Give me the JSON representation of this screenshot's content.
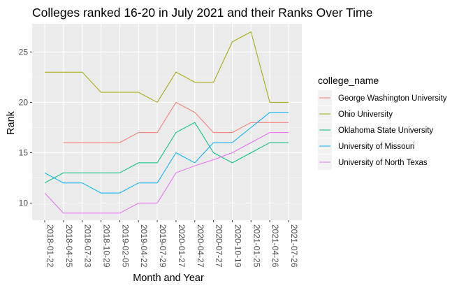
{
  "chart_data": {
    "type": "line",
    "title": "Colleges ranked 16-20 in July 2021 and their Ranks Over Time",
    "xlabel": "Month and Year",
    "ylabel": "Rank",
    "ylim": [
      8.3,
      27.8
    ],
    "yticks": [
      10,
      15,
      20,
      25
    ],
    "grid": true,
    "legend_position": "right",
    "legend_title": "college_name",
    "categories": [
      "2018-01-22",
      "2018-04-25",
      "2018-07-23",
      "2018-10-29",
      "2019-02-05",
      "2019-04-22",
      "2019-07-29",
      "2020-01-27",
      "2020-04-27",
      "2020-07-27",
      "2020-10-19",
      "2021-01-25",
      "2021-04-26",
      "2021-07-26"
    ],
    "series": [
      {
        "name": "George Washington University",
        "color": "#F8766D",
        "x": [
          "2018-04-25",
          "2018-07-23",
          "2018-10-29",
          "2019-02-05",
          "2019-04-22",
          "2019-07-29",
          "2020-01-27",
          "2020-04-27",
          "2020-07-27",
          "2020-10-19",
          "2021-01-25",
          "2021-04-26",
          "2021-07-26"
        ],
        "values": [
          16,
          16,
          16,
          16,
          17,
          17,
          20,
          19,
          17,
          17,
          18,
          18,
          18
        ]
      },
      {
        "name": "Ohio University",
        "color": "#A3A500",
        "x": [
          "2018-01-22",
          "2018-04-25",
          "2018-07-23",
          "2018-10-29",
          "2019-02-05",
          "2019-04-22",
          "2019-07-29",
          "2020-01-27",
          "2020-04-27",
          "2020-07-27",
          "2020-10-19",
          "2021-01-25",
          "2021-04-26",
          "2021-07-26"
        ],
        "values": [
          23,
          23,
          23,
          21,
          21,
          21,
          20,
          23,
          22,
          22,
          26,
          27,
          20,
          20
        ]
      },
      {
        "name": "Oklahoma State University",
        "color": "#00BF7D",
        "x": [
          "2018-01-22",
          "2018-04-25",
          "2018-07-23",
          "2018-10-29",
          "2019-02-05",
          "2019-04-22",
          "2019-07-29",
          "2020-01-27",
          "2020-04-27",
          "2020-07-27",
          "2020-10-19",
          "2021-01-25",
          "2021-04-26",
          "2021-07-26"
        ],
        "values": [
          12,
          13,
          13,
          13,
          13,
          14,
          14,
          17,
          18,
          15,
          14,
          15,
          16,
          16
        ]
      },
      {
        "name": "University of Missouri",
        "color": "#00B0F6",
        "x": [
          "2018-01-22",
          "2018-04-25",
          "2018-07-23",
          "2018-10-29",
          "2019-02-05",
          "2019-04-22",
          "2019-07-29",
          "2020-01-27",
          "2020-04-27",
          "2020-07-27",
          "2020-10-19",
          "2021-01-25",
          "2021-04-26",
          "2021-07-26"
        ],
        "values": [
          13,
          12,
          12,
          11,
          11,
          12,
          12,
          15,
          14,
          16,
          16,
          17.5,
          19,
          19
        ]
      },
      {
        "name": "University of North Texas",
        "color": "#E76BF3",
        "x": [
          "2018-01-22",
          "2018-04-25",
          "2018-07-23",
          "2018-10-29",
          "2019-02-05",
          "2019-04-22",
          "2019-07-29",
          "2020-01-27",
          "2020-04-27",
          "2020-07-27",
          "2020-10-19",
          "2021-01-25",
          "2021-04-26",
          "2021-07-26"
        ],
        "values": [
          11,
          9,
          9,
          9,
          9,
          10,
          10,
          13,
          13.7,
          14.3,
          15,
          16,
          17,
          17
        ]
      }
    ]
  }
}
